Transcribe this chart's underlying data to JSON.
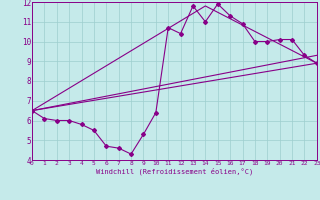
{
  "title": "",
  "xlabel": "Windchill (Refroidissement éolien,°C)",
  "ylabel": "",
  "bg_color": "#c5eaea",
  "line_color": "#880088",
  "grid_color": "#9ecece",
  "xlim": [
    0,
    23
  ],
  "ylim": [
    4,
    12
  ],
  "xticks": [
    0,
    1,
    2,
    3,
    4,
    5,
    6,
    7,
    8,
    9,
    10,
    11,
    12,
    13,
    14,
    15,
    16,
    17,
    18,
    19,
    20,
    21,
    22,
    23
  ],
  "yticks": [
    4,
    5,
    6,
    7,
    8,
    9,
    10,
    11,
    12
  ],
  "series1_x": [
    0,
    1,
    2,
    3,
    4,
    5,
    6,
    7,
    8,
    9,
    10,
    11,
    12,
    13,
    14,
    15,
    16,
    17,
    18,
    19,
    20,
    21,
    22,
    23
  ],
  "series1_y": [
    6.5,
    6.1,
    6.0,
    6.0,
    5.8,
    5.5,
    4.7,
    4.6,
    4.3,
    5.3,
    6.4,
    10.7,
    10.4,
    11.8,
    11.0,
    11.9,
    11.3,
    10.9,
    10.0,
    10.0,
    10.1,
    10.1,
    9.3,
    8.9
  ],
  "series2_x": [
    0,
    23
  ],
  "series2_y": [
    6.5,
    8.9
  ],
  "series3_x": [
    0,
    14,
    23
  ],
  "series3_y": [
    6.5,
    11.8,
    8.9
  ],
  "series4_x": [
    0,
    23
  ],
  "series4_y": [
    6.5,
    9.3
  ]
}
